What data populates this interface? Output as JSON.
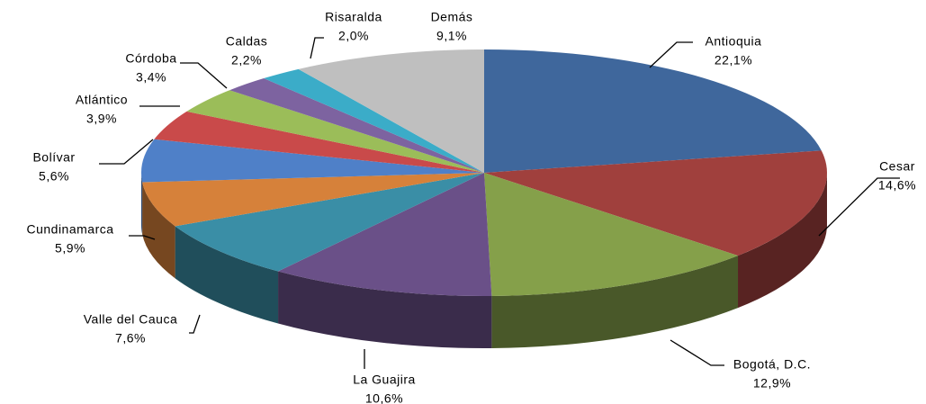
{
  "chart_data": {
    "type": "pie",
    "categories": [
      "Antioquia",
      "Cesar",
      "Bogotá, D.C.",
      "La Guajira",
      "Valle del Cauca",
      "Cundinamarca",
      "Bolívar",
      "Atlántico",
      "Córdoba",
      "Caldas",
      "Risaralda",
      "Demás"
    ],
    "values": [
      22.1,
      14.6,
      12.9,
      10.6,
      7.6,
      5.9,
      5.6,
      3.9,
      3.4,
      2.2,
      2.0,
      9.1
    ],
    "value_labels": [
      "22,1%",
      "14,6%",
      "12,9%",
      "10,6%",
      "7,6%",
      "5,9%",
      "5,6%",
      "3,9%",
      "3,4%",
      "2,2%",
      "2,0%",
      "9,1%"
    ],
    "colors": [
      "#3f679c",
      "#a0403d",
      "#85a04a",
      "#6a5088",
      "#3a8ea6",
      "#d6813a",
      "#4f80c8",
      "#c94a4a",
      "#9bbd59",
      "#7d63a0",
      "#3bacc8",
      "#bfbfbf"
    ]
  }
}
